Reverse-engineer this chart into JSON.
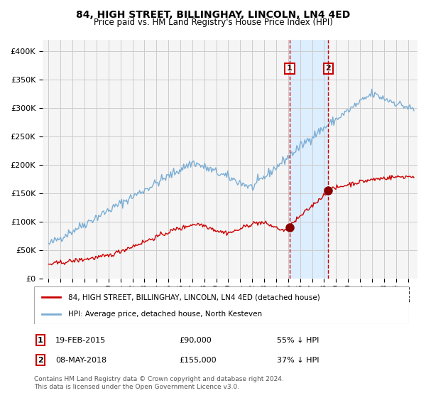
{
  "title": "84, HIGH STREET, BILLINGHAY, LINCOLN, LN4 4ED",
  "subtitle": "Price paid vs. HM Land Registry's House Price Index (HPI)",
  "red_label": "84, HIGH STREET, BILLINGHAY, LINCOLN, LN4 4ED (detached house)",
  "blue_label": "HPI: Average price, detached house, North Kesteven",
  "annotation1_date": "19-FEB-2015",
  "annotation1_price": "£90,000",
  "annotation1_hpi": "55% ↓ HPI",
  "annotation2_date": "08-MAY-2018",
  "annotation2_price": "£155,000",
  "annotation2_hpi": "37% ↓ HPI",
  "footer": "Contains HM Land Registry data © Crown copyright and database right 2024.\nThis data is licensed under the Open Government Licence v3.0.",
  "point1_x": 2015.13,
  "point1_y": 90000,
  "point2_x": 2018.35,
  "point2_y": 155000,
  "shade_x1": 2015.13,
  "shade_x2": 2018.35,
  "ylim": [
    0,
    420000
  ],
  "xlim_start": 1994.5,
  "xlim_end": 2025.8,
  "red_color": "#cc0000",
  "blue_color": "#7aadd4",
  "shade_color": "#ddeeff",
  "dashed_color": "#cc0000",
  "grid_color": "#cccccc",
  "bg_color": "#f5f5f5"
}
